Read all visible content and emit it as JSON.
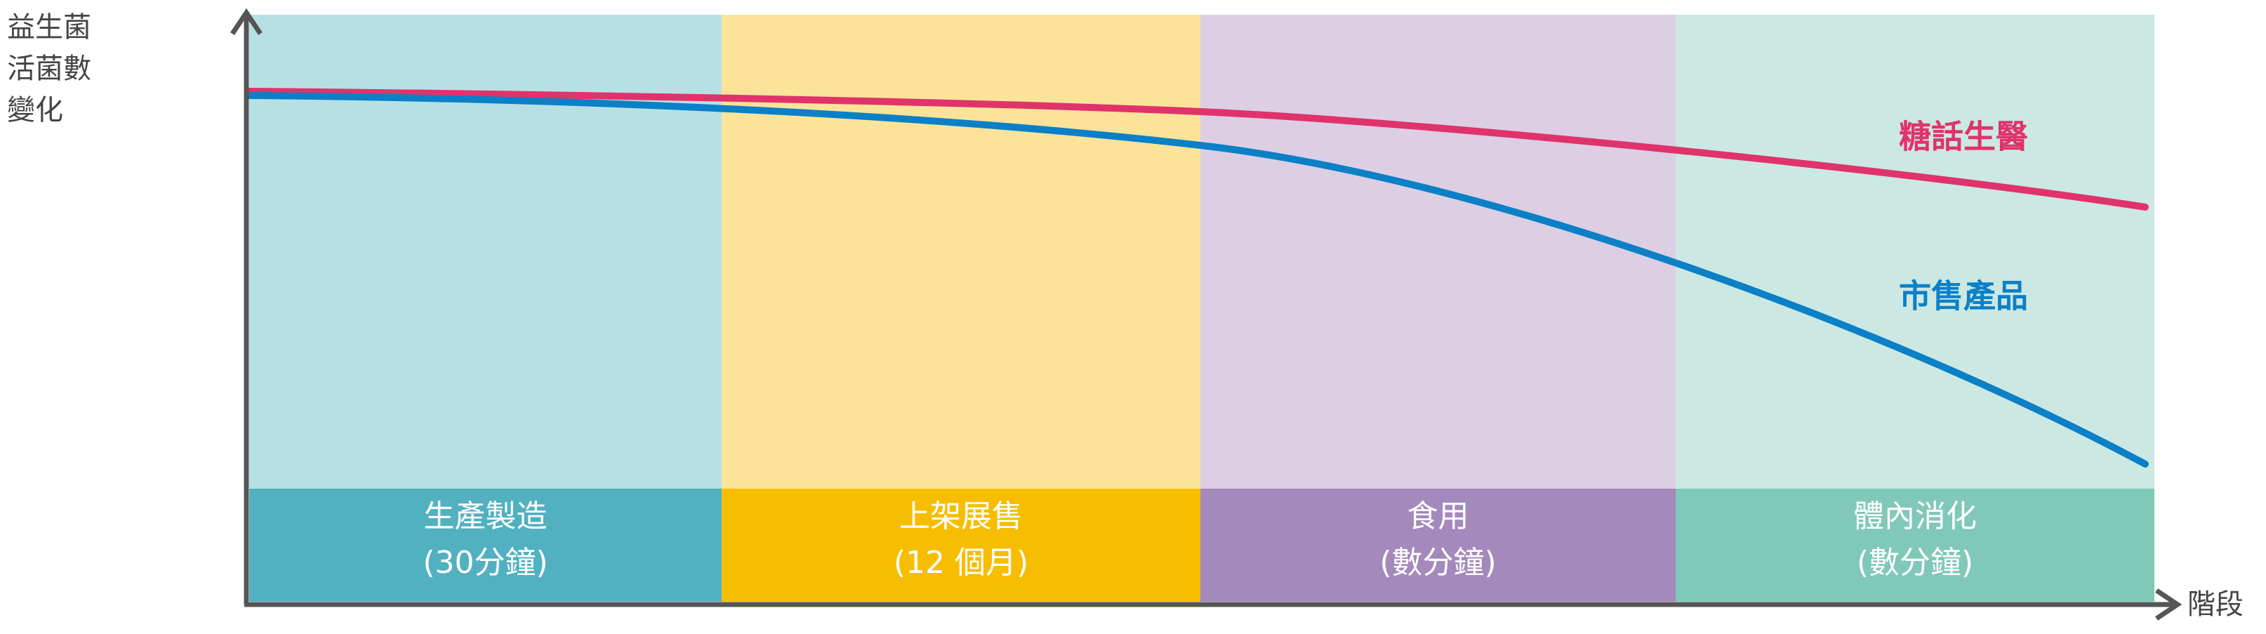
{
  "y_axis_label": [
    "益生菌",
    "活菌數",
    "變化"
  ],
  "x_axis_label": "階段",
  "stages": [
    {
      "label": "生產製造",
      "detail": "(30分鐘)",
      "band_color": "#b8e0e4",
      "box_color": "#52b1c0"
    },
    {
      "label": "上架展售",
      "detail": "(12 個月)",
      "band_color": "#fbe49a",
      "box_color": "#f7bd00"
    },
    {
      "label": "食用",
      "detail": "(數分鐘)",
      "band_color": "#dccfe4",
      "box_color": "#a489bc"
    },
    {
      "label": "體內消化",
      "detail": "(數分鐘)",
      "band_color": "#cce8e2",
      "box_color": "#80c8b8"
    }
  ],
  "curves": [
    {
      "name": "糖話生醫",
      "color": "#e0336b"
    },
    {
      "name": "市售產品",
      "color": "#0b80c7"
    }
  ]
}
